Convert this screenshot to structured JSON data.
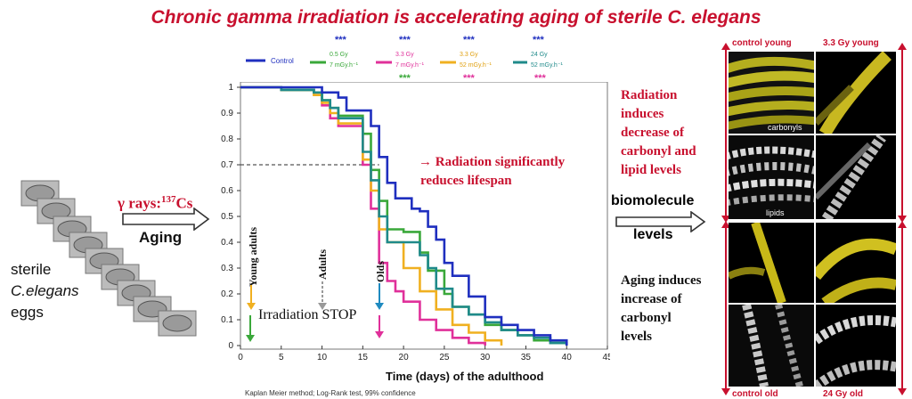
{
  "title": "Chronic gamma irradiation is accelerating aging of sterile C. elegans",
  "left_label": {
    "line1": "sterile",
    "line2": "C.elegans",
    "line3": "eggs"
  },
  "gamma_label": {
    "prefix": "γ rays:",
    "superscript": "137",
    "element": "Cs"
  },
  "aging_label": "Aging",
  "finding": {
    "line1": "→ Radiation significantly",
    "line2": "reduces lifespan"
  },
  "biomolecule": {
    "line1": "biomolecule",
    "line2": "levels"
  },
  "radiation_effect": [
    "Radiation",
    "induces",
    "decrease of",
    "carbonyl and",
    "lipid levels"
  ],
  "aging_effect": [
    "Aging induces",
    "increase of",
    "carbonyl",
    "levels"
  ],
  "legend": {
    "control": "Control",
    "g05": {
      "line1": "0.5 Gy",
      "line2": "7 mGy.h⁻¹"
    },
    "g33a": {
      "line1": "3.3 Gy",
      "line2": "7 mGy.h⁻¹"
    },
    "g33b": {
      "line1": "3.3 Gy",
      "line2": "52 mGy.h⁻¹"
    },
    "g24": {
      "line1": "24 Gy",
      "line2": "52 mGy.h⁻¹"
    },
    "significance": "***"
  },
  "annotations": {
    "young_adults": "Young adults",
    "adults": "Adults",
    "olds": "Olds",
    "irradiation_stop": "Irradiation STOP"
  },
  "footnote": "Kaplan Meier method; Log-Rank test, 99% confidence",
  "panels": {
    "control_young": "control young",
    "gy_young": "3.3 Gy young",
    "control_old": "control old",
    "gy_old": "24 Gy old",
    "carbonyls": "carbonyls",
    "lipids": "lipids"
  },
  "colors": {
    "control": "#1f2fbf",
    "g05": "#3aa83a",
    "g33a": "#e0309a",
    "g33b": "#f0b020",
    "g24": "#1f8a8a",
    "title": "#c8102e"
  },
  "chart_data": {
    "type": "line",
    "xlabel": "Time (days) of the adulthood",
    "ylabel": "",
    "xlim": [
      0,
      45
    ],
    "ylim": [
      0,
      1
    ],
    "xticks": [
      0,
      5,
      10,
      15,
      20,
      25,
      30,
      35,
      40,
      45
    ],
    "yticks": [
      0,
      0.1,
      0.2,
      0.3,
      0.4,
      0.5,
      0.6,
      0.7,
      0.8,
      0.9,
      1
    ],
    "reference_y": 0.7,
    "series": [
      {
        "name": "Control",
        "color": "#1f2fbf",
        "x": [
          0,
          5,
          9,
          10,
          12,
          13,
          16,
          17,
          18,
          19,
          20,
          21,
          22,
          23,
          24,
          25,
          26,
          28,
          30,
          32,
          34,
          36,
          38,
          40
        ],
        "y": [
          1,
          1,
          1,
          0.98,
          0.96,
          0.91,
          0.85,
          0.73,
          0.63,
          0.57,
          0.57,
          0.53,
          0.52,
          0.46,
          0.41,
          0.32,
          0.27,
          0.19,
          0.11,
          0.08,
          0.06,
          0.04,
          0.02,
          0
        ]
      },
      {
        "name": "0.5 Gy 7 mGy.h⁻¹",
        "color": "#3aa83a",
        "x": [
          0,
          5,
          9,
          10,
          11,
          12,
          15,
          16,
          17,
          18,
          20,
          22,
          23,
          25,
          26,
          28,
          30,
          32,
          34,
          36,
          38,
          40
        ],
        "y": [
          1,
          0.99,
          0.98,
          0.95,
          0.92,
          0.89,
          0.82,
          0.68,
          0.56,
          0.45,
          0.44,
          0.36,
          0.29,
          0.2,
          0.15,
          0.12,
          0.08,
          0.06,
          0.04,
          0.02,
          0.01,
          0
        ]
      },
      {
        "name": "3.3 Gy 7 mGy.h⁻¹",
        "color": "#e0309a",
        "x": [
          0,
          5,
          9,
          10,
          11,
          12,
          15,
          16,
          17,
          18,
          19,
          20,
          22,
          24,
          26,
          28,
          30
        ],
        "y": [
          1,
          0.99,
          0.98,
          0.93,
          0.88,
          0.85,
          0.7,
          0.53,
          0.32,
          0.25,
          0.21,
          0.17,
          0.1,
          0.06,
          0.03,
          0.01,
          0
        ]
      },
      {
        "name": "3.3 Gy 52 mGy.h⁻¹",
        "color": "#f0b020",
        "x": [
          0,
          5,
          9,
          10,
          11,
          12,
          15,
          16,
          17,
          18,
          20,
          22,
          24,
          26,
          28,
          30,
          32
        ],
        "y": [
          1,
          0.99,
          0.97,
          0.94,
          0.9,
          0.86,
          0.72,
          0.6,
          0.45,
          0.4,
          0.3,
          0.21,
          0.14,
          0.08,
          0.05,
          0.02,
          0
        ]
      },
      {
        "name": "24 Gy 52 mGy.h⁻¹",
        "color": "#1f8a8a",
        "x": [
          0,
          5,
          9,
          10,
          11,
          12,
          15,
          16,
          17,
          18,
          20,
          22,
          23,
          24,
          26,
          28,
          30,
          32,
          34,
          36,
          38,
          40
        ],
        "y": [
          1,
          0.99,
          0.98,
          0.95,
          0.92,
          0.88,
          0.75,
          0.64,
          0.5,
          0.4,
          0.4,
          0.35,
          0.3,
          0.22,
          0.15,
          0.12,
          0.09,
          0.06,
          0.04,
          0.03,
          0.01,
          0
        ]
      }
    ]
  }
}
